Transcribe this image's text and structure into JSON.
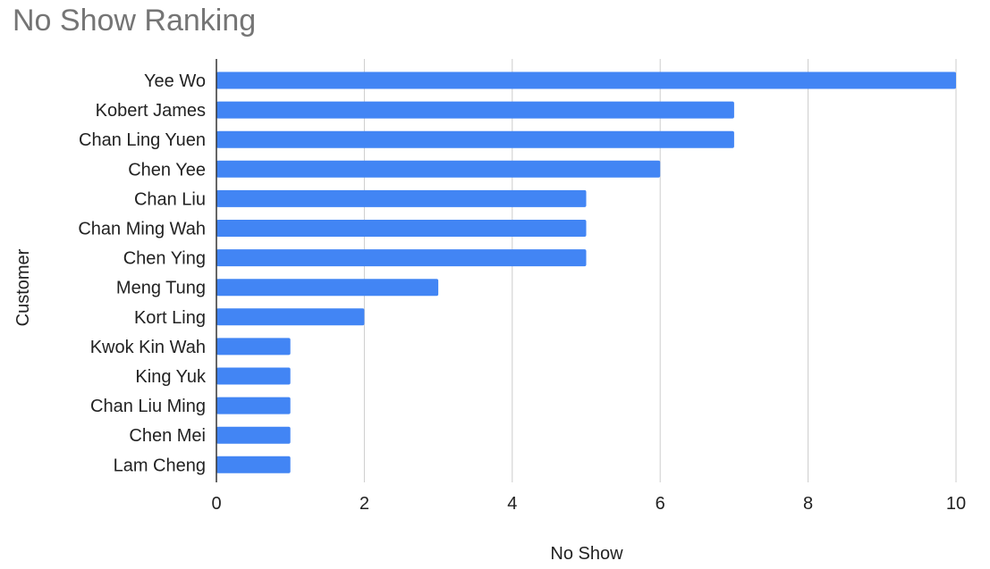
{
  "chart_data": {
    "type": "bar",
    "orientation": "horizontal",
    "title": "No Show Ranking",
    "xlabel": "No Show",
    "ylabel": "Customer",
    "categories": [
      "Yee Wo",
      "Kobert James",
      "Chan Ling Yuen",
      "Chen Yee",
      "Chan Liu",
      "Chan Ming Wah",
      "Chen Ying",
      "Meng Tung",
      "Kort Ling",
      "Kwok Kin Wah",
      "King Yuk",
      "Chan Liu Ming",
      "Chen Mei",
      "Lam Cheng"
    ],
    "values": [
      10,
      7,
      7,
      6,
      5,
      5,
      5,
      3,
      2,
      1,
      1,
      1,
      1,
      1
    ],
    "xlim": [
      0,
      10
    ],
    "xticks": [
      "0",
      "2",
      "4",
      "6",
      "8",
      "10"
    ],
    "grid": true,
    "legend": "none",
    "bar_color": "#4285f4"
  }
}
